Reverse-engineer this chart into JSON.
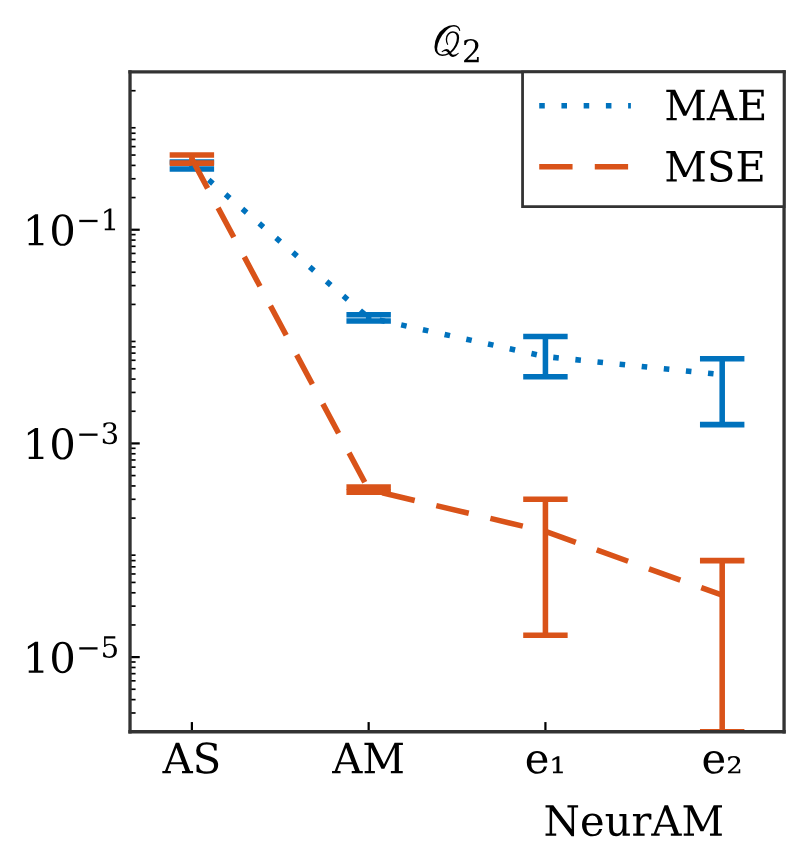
{
  "chart_data": {
    "type": "line",
    "title": "𝒬$_{2}$",
    "categories": [
      "AS",
      "AM",
      "e₁",
      "e₂"
    ],
    "annotations": [
      "NeurAM"
    ],
    "log": "y",
    "ylim": [
      2e-06,
      3
    ],
    "yticks": [
      {
        "value": 0.1,
        "label": "10$^{−1}$"
      },
      {
        "value": 0.001,
        "label": "10$^{−3}$"
      },
      {
        "value": 1e-05,
        "label": "10$^{−5}$"
      }
    ],
    "grid": false,
    "legend": "top right",
    "marker": "none",
    "series": [
      {
        "name": "MAE",
        "color": "#0072bd",
        "line_style": "dotted",
        "values": [
          0.4,
          0.015,
          0.0065,
          0.0044
        ],
        "errors": [
          [
            0.37,
            0.43
          ],
          [
            0.014,
            0.016
          ],
          [
            0.0042,
            0.01
          ],
          [
            0.0015,
            0.0062
          ]
        ]
      },
      {
        "name": "MSE",
        "color": "#d95319",
        "line_style": "dashed",
        "values": [
          0.46,
          0.00037,
          0.00015,
          3.8e-05
        ],
        "errors": [
          [
            0.42,
            0.5
          ],
          [
            0.00035,
            0.00039
          ],
          [
            1.6e-05,
            0.0003
          ],
          [
            2e-06,
            8e-05
          ]
        ]
      }
    ]
  }
}
